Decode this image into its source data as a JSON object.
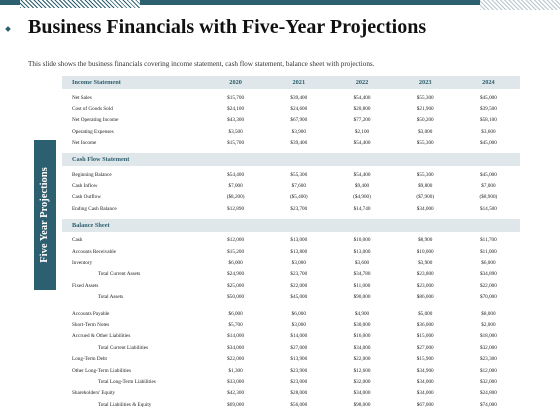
{
  "title": "Business Financials with Five-Year Projections",
  "subtitle": "This slide shows the business financials covering income statement, cash flow statement, balance sheet with projections.",
  "side_label": "Five Year Projections",
  "years": [
    "2020",
    "2021",
    "2022",
    "2023",
    "2024"
  ],
  "income": {
    "header": "Income Statement",
    "rows": [
      {
        "label": "Net Sales",
        "values": [
          "$15,700",
          "$39,400",
          "$54,400",
          "$55,300",
          "$45,000"
        ]
      },
      {
        "label": "Cost of Goods Sold",
        "values": [
          "$24,100",
          "$24,600",
          "$20,800",
          "$21,900",
          "$39,500"
        ]
      },
      {
        "label": "Net Operating Income",
        "values": [
          "$43,300",
          "$67,900",
          "$77,200",
          "$50,200",
          "$58,100"
        ]
      },
      {
        "label": "Operating Expenses",
        "values": [
          "$3,500",
          "$3,900",
          "$2,100",
          "$3,000",
          "$3,600"
        ]
      },
      {
        "label": "Net Income",
        "values": [
          "$15,700",
          "$39,400",
          "$54,400",
          "$55,300",
          "$45,000"
        ]
      }
    ]
  },
  "cashflow": {
    "header": "Cash Flow Statement",
    "rows": [
      {
        "label": "Beginning Balance",
        "values": [
          "$54,400",
          "$55,300",
          "$54,400",
          "$55,300",
          "$45,000"
        ]
      },
      {
        "label": "Cash Inflow",
        "values": [
          "$7,000",
          "$7,600",
          "$9,400",
          "$9,800",
          "$7,000"
        ]
      },
      {
        "label": "Cash Outflow",
        "values": [
          "($8,200)",
          "($5,400)",
          "($4,900)",
          "($7,900)",
          "($8,900)"
        ]
      },
      {
        "label": "Ending Cash Balance",
        "values": [
          "$12,890",
          "$23,700",
          "$14,740",
          "$34,000",
          "$14,500"
        ]
      }
    ]
  },
  "balance": {
    "header": "Balance Sheet",
    "rows_a": [
      {
        "label": "Cash",
        "indent": false,
        "values": [
          "$12,000",
          "$13,000",
          "$10,000",
          "$8,900",
          "$11,700"
        ]
      },
      {
        "label": "Accounts Receivable",
        "indent": false,
        "values": [
          "$15,200",
          "$13,800",
          "$13,000",
          "$10,000",
          "$11,000"
        ]
      },
      {
        "label": "Inventory",
        "indent": false,
        "values": [
          "$6,000",
          "$3,000",
          "$3,600",
          "$3,900",
          "$6,000"
        ]
      },
      {
        "label": "Total Current Assets",
        "indent": true,
        "values": [
          "$24,900",
          "$23,700",
          "$34,780",
          "$23,800",
          "$34,890"
        ]
      },
      {
        "label": "Fixed Assets",
        "indent": false,
        "values": [
          "$25,000",
          "$22,000",
          "$11,000",
          "$23,000",
          "$22,000"
        ]
      },
      {
        "label": "Total Assets",
        "indent": true,
        "values": [
          "$50,000",
          "$45,000",
          "$90,000",
          "$86,000",
          "$70,000"
        ]
      }
    ],
    "rows_b": [
      {
        "label": "Accounts Payable",
        "indent": false,
        "values": [
          "$6,000",
          "$6,000",
          "$4,900",
          "$5,000",
          "$8,000"
        ]
      },
      {
        "label": "Short-Term Notes",
        "indent": false,
        "values": [
          "$5,700",
          "$3,000",
          "$30,000",
          "$36,000",
          "$2,000"
        ]
      },
      {
        "label": "Accrued & Other Liabilities",
        "indent": false,
        "values": [
          "$14,000",
          "$14,000",
          "$16,000",
          "$15,000",
          "$18,000"
        ]
      },
      {
        "label": "Total Current Liabilities",
        "indent": true,
        "values": [
          "$34,000",
          "$27,000",
          "$34,000",
          "$27,000",
          "$32,000"
        ]
      },
      {
        "label": "Long-Term Debt",
        "indent": false,
        "values": [
          "$22,000",
          "$13,900",
          "$22,000",
          "$15,900",
          "$23,300"
        ]
      },
      {
        "label": "Other Long-Term Liabilities",
        "indent": false,
        "values": [
          "$1,300",
          "$23,900",
          "$12,600",
          "$34,900",
          "$12,000"
        ]
      },
      {
        "label": "Total Long-Term Liabilities",
        "indent": true,
        "values": [
          "$33,000",
          "$23,000",
          "$32,000",
          "$34,000",
          "$32,000"
        ]
      },
      {
        "label": "Shareholders' Equity",
        "indent": false,
        "values": [
          "$42,300",
          "$28,000",
          "$34,000",
          "$34,000",
          "$24,800"
        ]
      },
      {
        "label": "Total Liabilities & Equity",
        "indent": true,
        "values": [
          "$69,000",
          "$56,000",
          "$98,000",
          "$67,000",
          "$74,000"
        ]
      }
    ]
  }
}
